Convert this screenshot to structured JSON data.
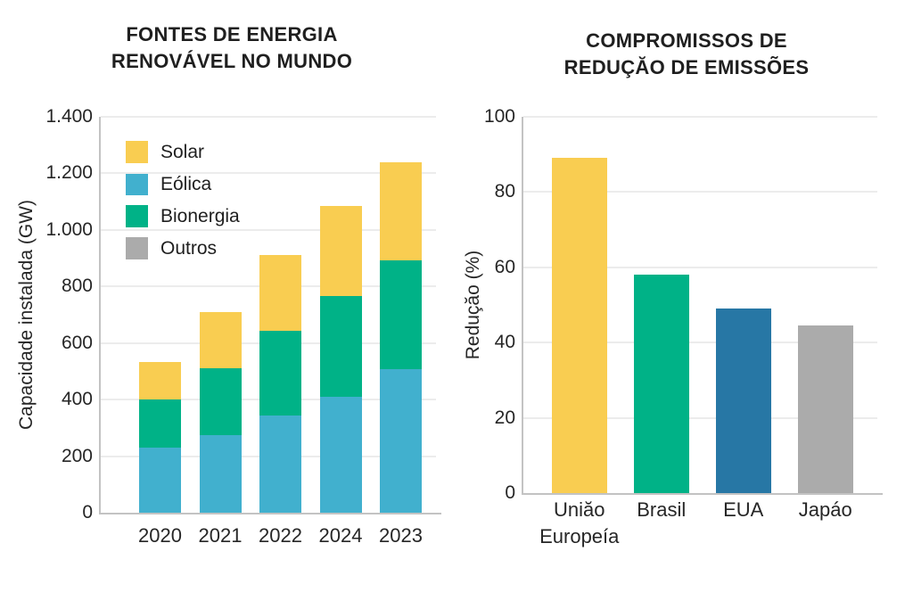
{
  "page": {
    "background": "#ffffff"
  },
  "chart_data": [
    {
      "type": "bar",
      "subtype": "stacked",
      "title": "FONTES DE ENERGIA\nRENOVÁVEL NO MUNDO",
      "ylabel": "Capacidade instalada (GW)",
      "xlabel": "",
      "categories": [
        "2020",
        "2021",
        "2022",
        "2024",
        "2023"
      ],
      "series": [
        {
          "name": "Eólica",
          "color": "#41b0ce",
          "values": [
            230,
            273,
            345,
            409,
            508
          ]
        },
        {
          "name": "Bionergia",
          "color": "#00b287",
          "values": [
            170,
            237,
            298,
            357,
            385
          ]
        },
        {
          "name": "Solar",
          "color": "#f9cd51",
          "values": [
            133,
            200,
            267,
            318,
            345
          ]
        },
        {
          "name": "Outros",
          "color": "#ababab",
          "values": [
            0,
            0,
            0,
            0,
            0
          ]
        }
      ],
      "totals": [
        533,
        710,
        910,
        1084,
        1238
      ],
      "legend": [
        {
          "label": "Solar",
          "color": "#f9cd51"
        },
        {
          "label": "Eólica",
          "color": "#41b0ce"
        },
        {
          "label": "Bionergia",
          "color": "#00b287"
        },
        {
          "label": "Outros",
          "color": "#ababab"
        }
      ],
      "legend_position": "upper-left-inside",
      "grid": true,
      "ylim": [
        0,
        1400
      ],
      "yticks": [
        {
          "value": 0,
          "label": "0"
        },
        {
          "value": 200,
          "label": "200"
        },
        {
          "value": 400,
          "label": "400"
        },
        {
          "value": 600,
          "label": "600"
        },
        {
          "value": 800,
          "label": "800"
        },
        {
          "value": 1000,
          "label": "1.000"
        },
        {
          "value": 1200,
          "label": "1.200"
        },
        {
          "value": 1400,
          "label": "1.400"
        }
      ]
    },
    {
      "type": "bar",
      "subtype": "simple",
      "title": "COMPROMISSOS DE\nREDUÇĂO DE EMISSÕES",
      "ylabel": "Reduçăo (%)",
      "xlabel": "",
      "categories": [
        "Uniăo\nEuropeía",
        "Brasil",
        "EUA",
        "Japáo"
      ],
      "values": [
        89,
        58,
        49,
        44.5
      ],
      "colors": [
        "#f9cd51",
        "#00b287",
        "#2777a5",
        "#ababab"
      ],
      "grid": true,
      "ylim": [
        0,
        100
      ],
      "yticks": [
        {
          "value": 0,
          "label": "0"
        },
        {
          "value": 20,
          "label": "20"
        },
        {
          "value": 40,
          "label": "40"
        },
        {
          "value": 60,
          "label": "60"
        },
        {
          "value": 80,
          "label": "80"
        },
        {
          "value": 100,
          "label": "100"
        }
      ]
    }
  ]
}
